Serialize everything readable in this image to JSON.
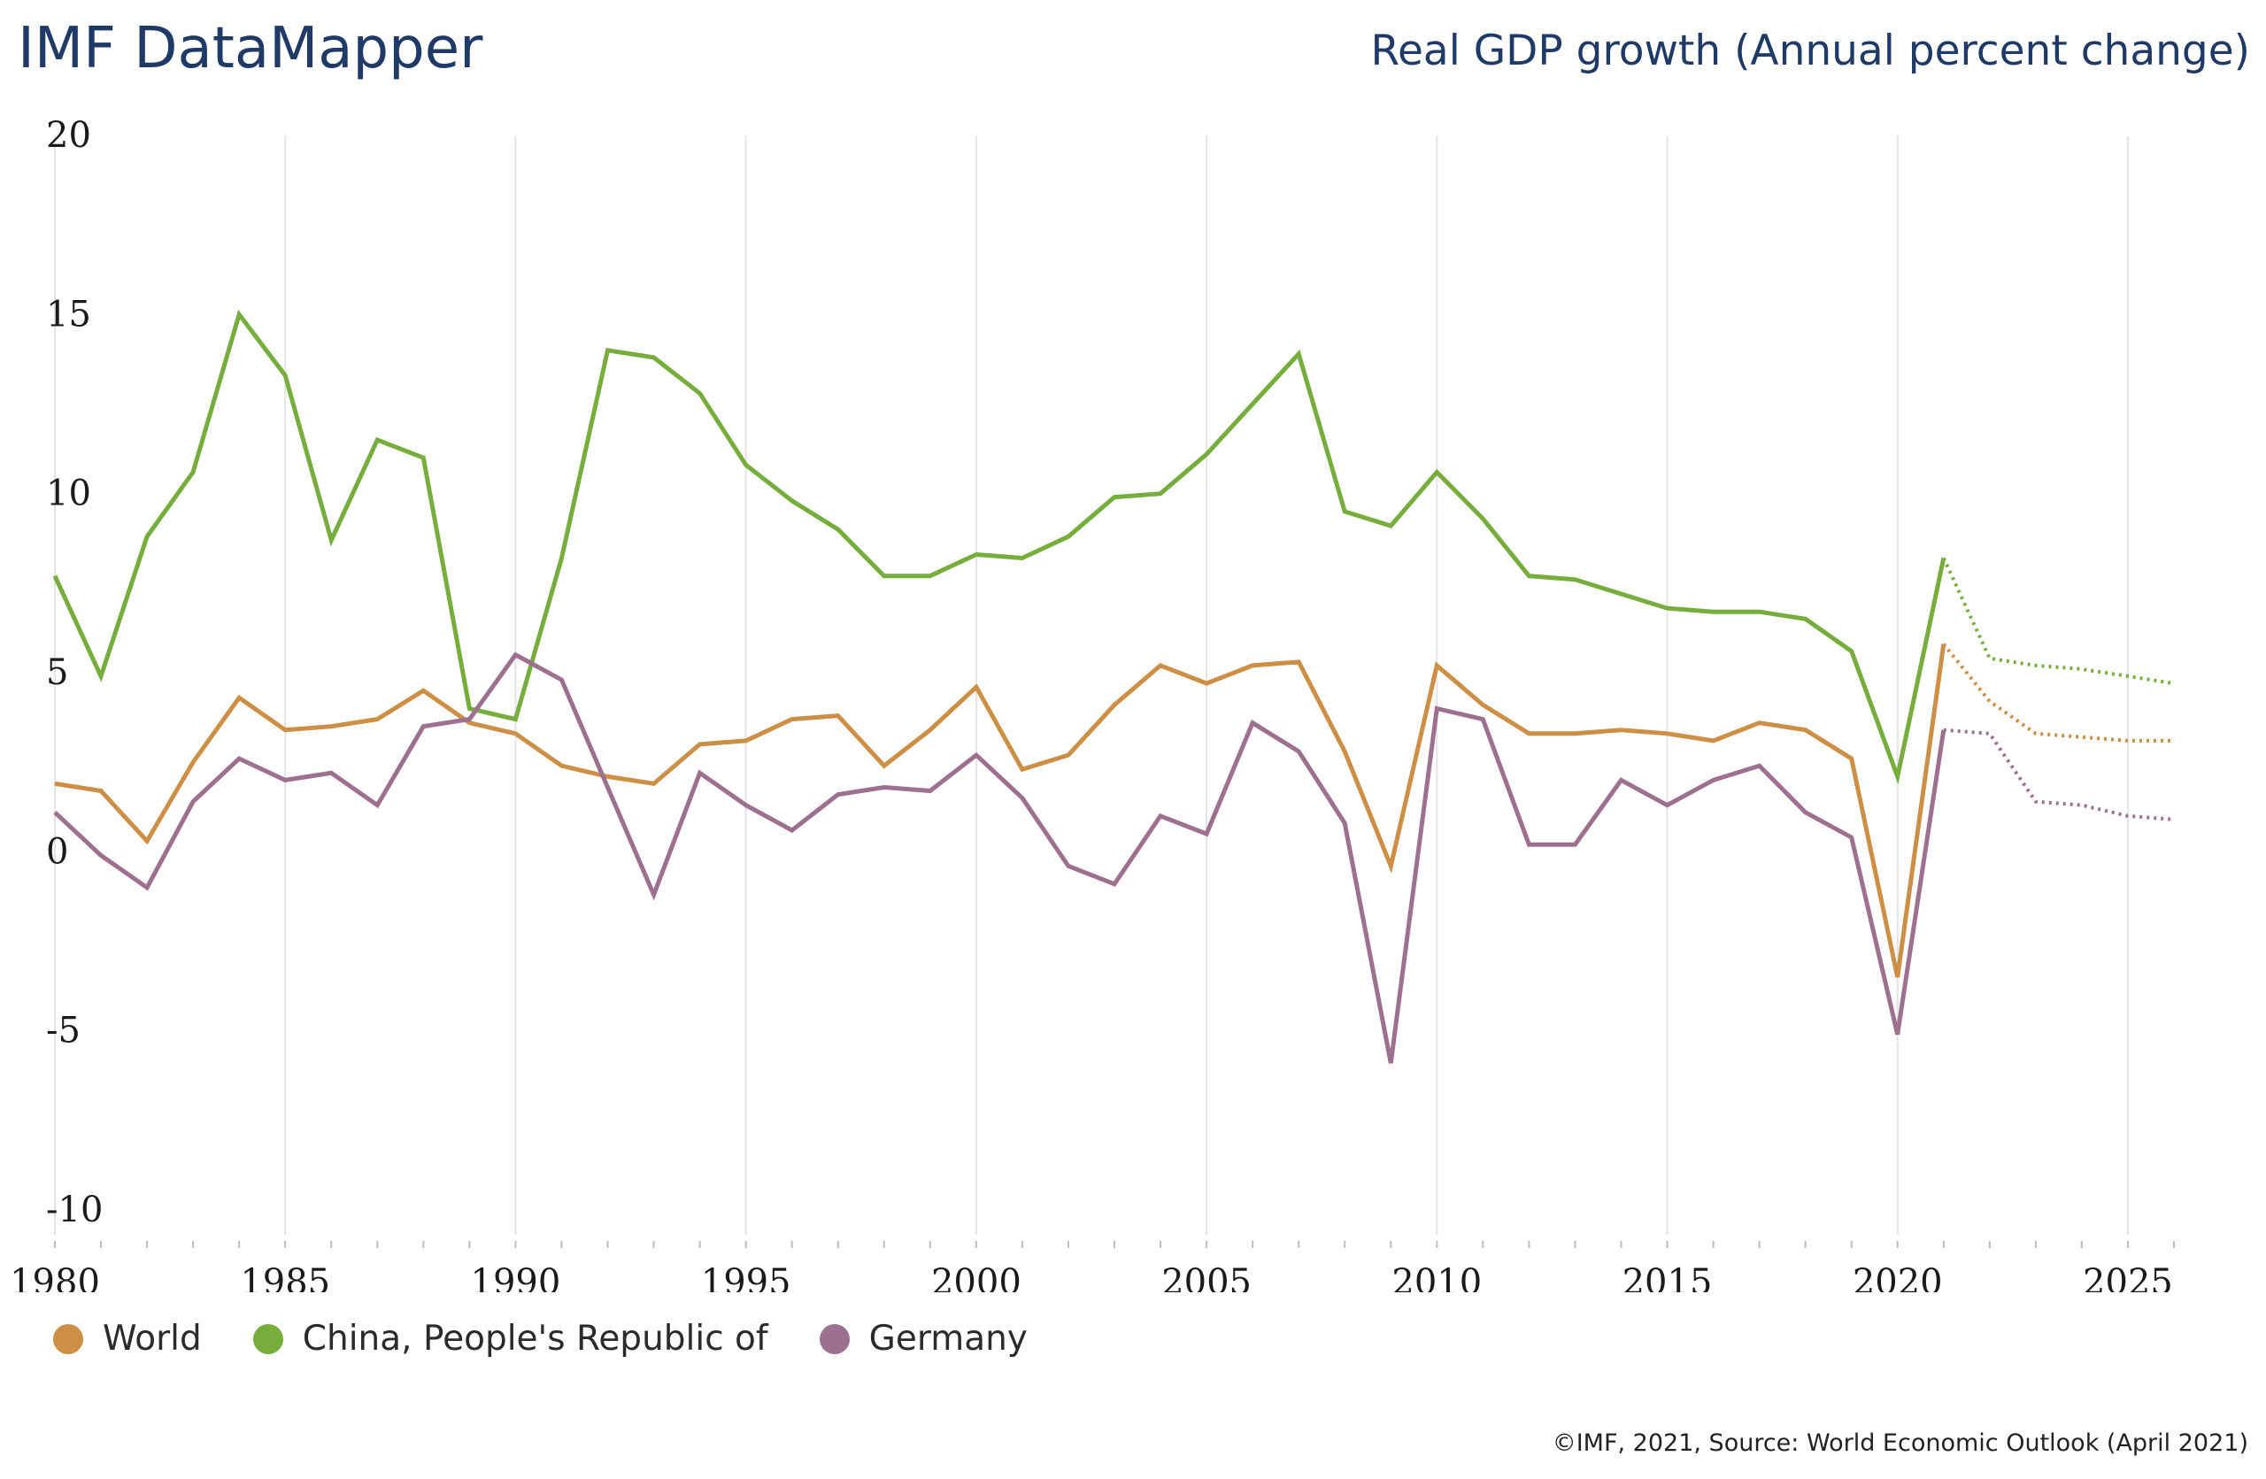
{
  "header": {
    "brand": "IMF DataMapper",
    "indicator": "Real GDP growth (Annual percent change)"
  },
  "footer": {
    "credit": "©IMF, 2021, Source: World Economic Outlook (April 2021)"
  },
  "colors": {
    "world": "#cc8f45",
    "china": "#76ad3c",
    "germany": "#9e7090",
    "grid": "#e4e4e4",
    "header_text": "#1f3a66"
  },
  "chart_data": {
    "type": "line",
    "title": "Real GDP growth (Annual percent change)",
    "xlabel": "",
    "ylabel": "",
    "xlim": [
      1980,
      2026
    ],
    "ylim": [
      -10,
      20
    ],
    "y_ticks": [
      "20",
      "15",
      "10",
      "5",
      "0",
      "-5",
      "-10"
    ],
    "x_ticks": [
      "1980",
      "1985",
      "1990",
      "1995",
      "2000",
      "2005",
      "2010",
      "2015",
      "2020",
      "2025"
    ],
    "grid": "vertical",
    "legend_position": "bottom-left",
    "projection_start": 2021,
    "x": [
      1980,
      1981,
      1982,
      1983,
      1984,
      1985,
      1986,
      1987,
      1988,
      1989,
      1990,
      1991,
      1992,
      1993,
      1994,
      1995,
      1996,
      1997,
      1998,
      1999,
      2000,
      2001,
      2002,
      2003,
      2004,
      2005,
      2006,
      2007,
      2008,
      2009,
      2010,
      2011,
      2012,
      2013,
      2014,
      2015,
      2016,
      2017,
      2018,
      2019,
      2020,
      2021,
      2022,
      2023,
      2024,
      2025,
      2026
    ],
    "series": [
      {
        "name": "World",
        "color_key": "world",
        "values": [
          1.9,
          1.7,
          0.3,
          2.5,
          4.3,
          3.4,
          3.5,
          3.7,
          4.5,
          3.6,
          3.3,
          2.4,
          2.1,
          1.9,
          3.0,
          3.1,
          3.7,
          3.8,
          2.4,
          3.4,
          4.6,
          2.3,
          2.7,
          4.1,
          5.2,
          4.7,
          5.2,
          5.3,
          2.8,
          -0.4,
          5.2,
          4.1,
          3.3,
          3.3,
          3.4,
          3.3,
          3.1,
          3.6,
          3.4,
          2.6,
          -3.5,
          5.8,
          4.2,
          3.3,
          3.2,
          3.1,
          3.1
        ]
      },
      {
        "name": "China, People's Republic of",
        "color_key": "china",
        "values": [
          7.7,
          4.9,
          8.8,
          10.6,
          15.0,
          13.3,
          8.7,
          11.5,
          11.0,
          4.0,
          3.7,
          8.2,
          14.0,
          13.8,
          12.8,
          10.8,
          9.8,
          9.0,
          7.7,
          7.7,
          8.3,
          8.2,
          8.8,
          9.9,
          10.0,
          11.1,
          12.5,
          13.9,
          9.5,
          9.1,
          10.6,
          9.3,
          7.7,
          7.6,
          7.2,
          6.8,
          6.7,
          6.7,
          6.5,
          5.6,
          2.1,
          8.2,
          5.4,
          5.2,
          5.1,
          4.9,
          4.7
        ]
      },
      {
        "name": "Germany",
        "color_key": "germany",
        "values": [
          1.1,
          -0.1,
          -1.0,
          1.4,
          2.6,
          2.0,
          2.2,
          1.3,
          3.5,
          3.7,
          5.5,
          4.8,
          1.8,
          -1.2,
          2.2,
          1.3,
          0.6,
          1.6,
          1.8,
          1.7,
          2.7,
          1.5,
          -0.4,
          -0.9,
          1.0,
          0.5,
          3.6,
          2.8,
          0.8,
          -5.9,
          4.0,
          3.7,
          0.2,
          0.2,
          2.0,
          1.3,
          2.0,
          2.4,
          1.1,
          0.4,
          -5.1,
          3.4,
          3.3,
          1.4,
          1.3,
          1.0,
          0.9
        ]
      }
    ]
  }
}
